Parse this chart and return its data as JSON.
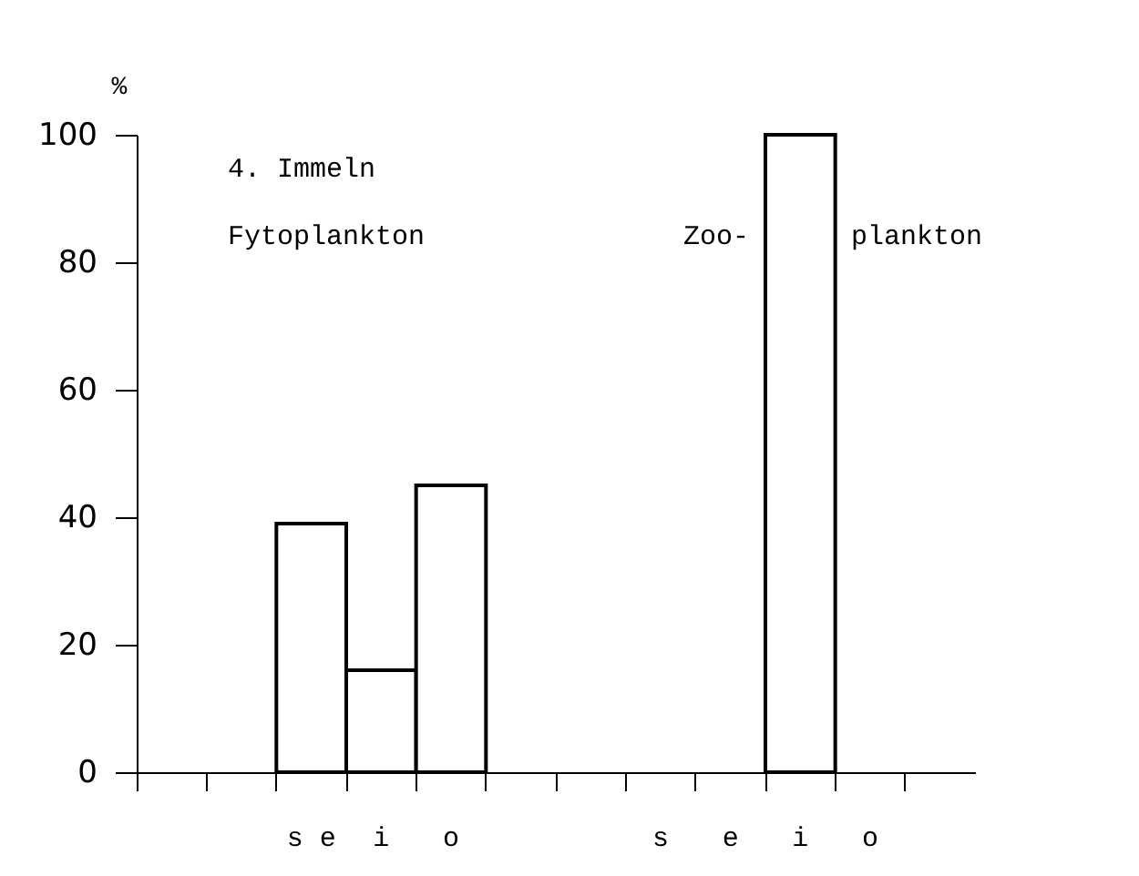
{
  "chart_data": {
    "type": "bar",
    "ylabel": "%",
    "categories": [
      null,
      null,
      "s e",
      "i",
      "o",
      null,
      null,
      "s",
      "e",
      "i",
      "o",
      null
    ],
    "values": [
      null,
      null,
      39,
      16,
      45,
      null,
      null,
      null,
      null,
      100,
      null,
      null
    ],
    "color": "#ffffff",
    "ylim": [
      0,
      100
    ],
    "yticks": [
      0,
      20,
      40,
      60,
      80,
      100
    ],
    "grid": false,
    "annotations": [
      "4. Immeln",
      "Fytoplankton",
      "Zoo-",
      "plankton"
    ]
  }
}
